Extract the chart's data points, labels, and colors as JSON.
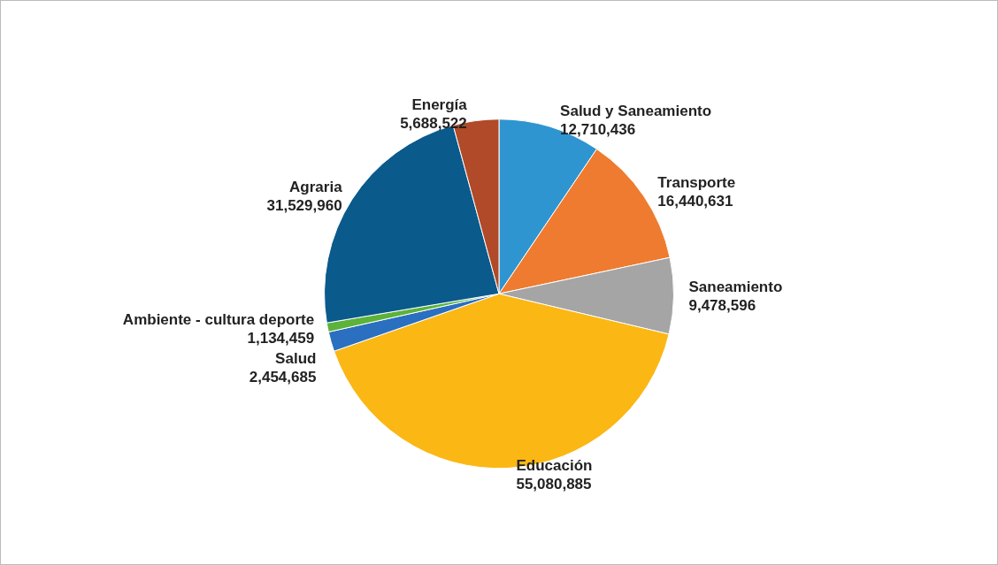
{
  "chart_data": {
    "type": "pie",
    "categories": [
      "Salud y Saneamiento",
      "Transporte",
      "Saneamiento",
      "Educación",
      "Salud",
      "Ambiente - cultura deporte",
      "Agraria",
      "Energía"
    ],
    "values": [
      12710436,
      16440631,
      9478596,
      55080885,
      2454685,
      1134459,
      31529960,
      5688522
    ],
    "value_labels": [
      "12,710,436",
      "16,440,631",
      "9,478,596",
      "55,080,885",
      "2,454,685",
      "1,134,459",
      "31,529,960",
      "5,688,522"
    ],
    "colors": [
      "#2e95d0",
      "#ef7b30",
      "#a5a5a5",
      "#fbb714",
      "#2a6fc0",
      "#5cb23a",
      "#0a5a8c",
      "#b04a28"
    ],
    "legend": false
  }
}
